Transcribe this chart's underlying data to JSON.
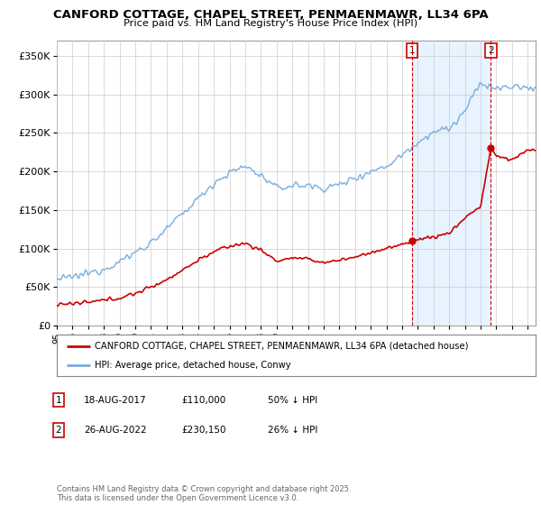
{
  "title": "CANFORD COTTAGE, CHAPEL STREET, PENMAENMAWR, LL34 6PA",
  "subtitle": "Price paid vs. HM Land Registry's House Price Index (HPI)",
  "xlim_start": 1995.0,
  "xlim_end": 2025.5,
  "ylim": [
    0,
    370000
  ],
  "yticks": [
    0,
    50000,
    100000,
    150000,
    200000,
    250000,
    300000,
    350000
  ],
  "ytick_labels": [
    "£0",
    "£50K",
    "£100K",
    "£150K",
    "£200K",
    "£250K",
    "£300K",
    "£350K"
  ],
  "hpi_color": "#7aaddb",
  "price_color": "#cc0000",
  "vline_color": "#cc0000",
  "shade_color": "#ddeeff",
  "marker1_date": 2017.633,
  "marker2_date": 2022.65,
  "marker1_price": 110000,
  "marker2_price": 230150,
  "legend_line1": "CANFORD COTTAGE, CHAPEL STREET, PENMAENMAWR, LL34 6PA (detached house)",
  "legend_line2": "HPI: Average price, detached house, Conwy",
  "table_row1": [
    "1",
    "18-AUG-2017",
    "£110,000",
    "50% ↓ HPI"
  ],
  "table_row2": [
    "2",
    "26-AUG-2022",
    "£230,150",
    "26% ↓ HPI"
  ],
  "footer": "Contains HM Land Registry data © Crown copyright and database right 2025.\nThis data is licensed under the Open Government Licence v3.0.",
  "background_color": "#ffffff",
  "plot_bg_color": "#ffffff",
  "hpi_anchor_years": [
    1995,
    1996,
    1997,
    1998,
    1999,
    2000,
    2001,
    2002,
    2003,
    2004,
    2005,
    2006,
    2007,
    2008,
    2009,
    2010,
    2011,
    2012,
    2013,
    2014,
    2015,
    2016,
    2017,
    2018,
    2019,
    2020,
    2021,
    2022,
    2023,
    2024,
    2025
  ],
  "hpi_anchor_vals": [
    60000,
    63000,
    68000,
    74000,
    83000,
    95000,
    108000,
    125000,
    145000,
    165000,
    185000,
    198000,
    207000,
    195000,
    178000,
    182000,
    182000,
    178000,
    183000,
    192000,
    200000,
    207000,
    222000,
    238000,
    252000,
    255000,
    278000,
    315000,
    307000,
    310000,
    308000
  ],
  "price_anchor_years": [
    1995,
    1996,
    1997,
    1998,
    1999,
    2000,
    2001,
    2002,
    2003,
    2004,
    2005,
    2006,
    2007,
    2008,
    2009,
    2010,
    2011,
    2012,
    2013,
    2014,
    2015,
    2016,
    2017,
    2017.633,
    2018,
    2019,
    2020,
    2021,
    2022,
    2022.65,
    2023,
    2024,
    2025
  ],
  "price_anchor_vals": [
    28000,
    28500,
    30000,
    33000,
    36000,
    42000,
    50000,
    60000,
    72000,
    85000,
    96000,
    103000,
    107000,
    98000,
    84000,
    88000,
    86000,
    82000,
    85000,
    89000,
    95000,
    100000,
    105000,
    110000,
    112000,
    115000,
    120000,
    140000,
    155000,
    230150,
    220000,
    215000,
    228000
  ]
}
